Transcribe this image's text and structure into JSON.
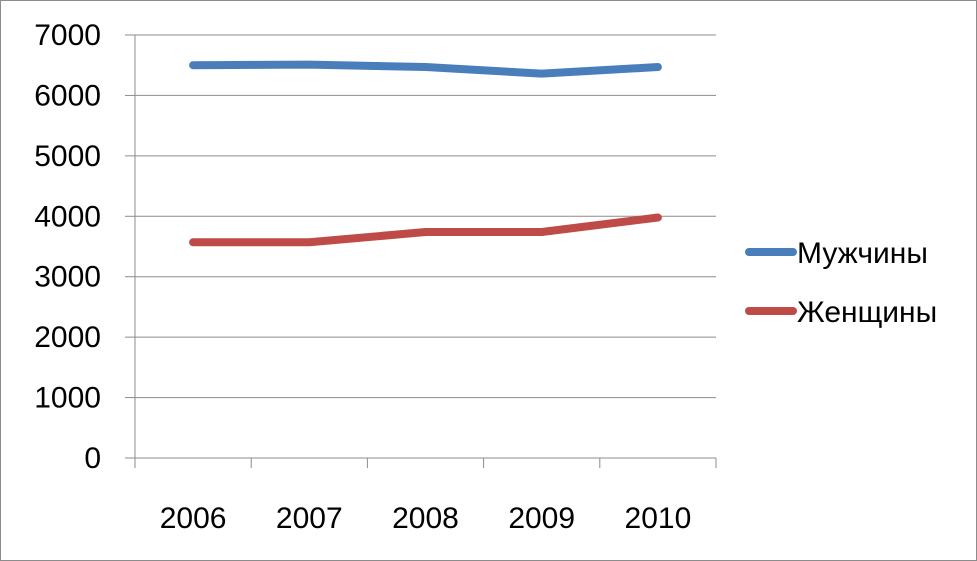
{
  "chart_data": {
    "type": "line",
    "title": "",
    "xlabel": "",
    "ylabel": "",
    "categories": [
      "2006",
      "2007",
      "2008",
      "2009",
      "2010"
    ],
    "ylim": [
      0,
      7000
    ],
    "yticks": [
      0,
      1000,
      2000,
      3000,
      4000,
      5000,
      6000,
      7000
    ],
    "grid": true,
    "legend_position": "right",
    "series": [
      {
        "name": "Мужчины",
        "color": "#4a7ebb",
        "values": [
          6500,
          6510,
          6470,
          6360,
          6470
        ]
      },
      {
        "name": "Женщины",
        "color": "#be4b48",
        "values": [
          3570,
          3570,
          3740,
          3740,
          3980
        ]
      }
    ]
  }
}
